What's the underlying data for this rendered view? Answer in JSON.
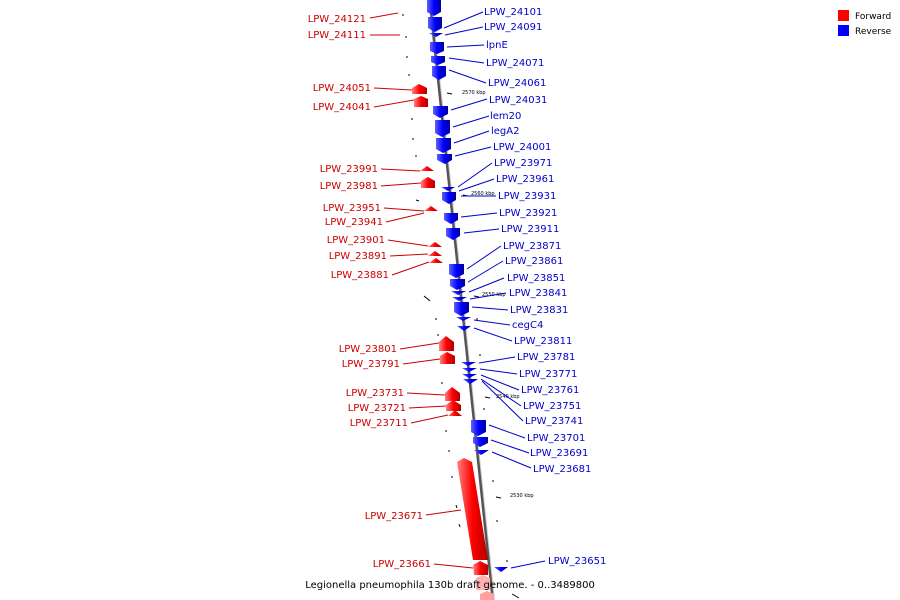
{
  "legend": {
    "forward_label": "Forward",
    "reverse_label": "Reverse",
    "forward_color": "#ff0000",
    "reverse_color": "#0000ff"
  },
  "caption": "Legionella pneumophila 130b draft genome. - 0..3489800",
  "scale_ticks": [
    "2570 kbp",
    "2560 kbp",
    "2550 kbp",
    "2540 kbp",
    "2530 kbp"
  ],
  "genes_forward": [
    "LPW_24121",
    "LPW_24111",
    "LPW_24051",
    "LPW_24041",
    "LPW_23991",
    "LPW_23981",
    "LPW_23951",
    "LPW_23941",
    "LPW_23901",
    "LPW_23891",
    "LPW_23881",
    "LPW_23801",
    "LPW_23791",
    "LPW_23731",
    "LPW_23721",
    "LPW_23711",
    "LPW_23671",
    "LPW_23661"
  ],
  "genes_reverse": [
    "LPW_24101",
    "LPW_24091",
    "lpnE",
    "LPW_24071",
    "LPW_24061",
    "LPW_24031",
    "lem20",
    "legA2",
    "LPW_24001",
    "LPW_23971",
    "LPW_23961",
    "LPW_23931",
    "LPW_23921",
    "LPW_23911",
    "LPW_23871",
    "LPW_23861",
    "LPW_23851",
    "LPW_23841",
    "LPW_23831",
    "cegC4",
    "LPW_23811",
    "LPW_23781",
    "LPW_23771",
    "LPW_23761",
    "LPW_23751",
    "LPW_23741",
    "LPW_23701",
    "LPW_23691",
    "LPW_23681",
    "LPW_23651"
  ]
}
